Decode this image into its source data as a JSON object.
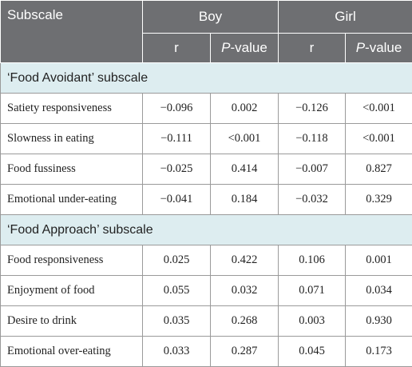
{
  "table": {
    "header": {
      "subscale": "Subscale",
      "groups": [
        "Boy",
        "Girl"
      ],
      "columns": [
        {
          "text": "r"
        },
        {
          "italic": "P",
          "text": "-value"
        },
        {
          "text": "r"
        },
        {
          "italic": "P",
          "text": "-value"
        }
      ]
    },
    "sections": [
      {
        "title": "‘Food Avoidant’ subscale",
        "rows": [
          [
            "Satiety responsiveness",
            "−0.096",
            "0.002",
            "−0.126",
            "<0.001"
          ],
          [
            "Slowness in eating",
            "−0.111",
            "<0.001",
            "−0.118",
            "<0.001"
          ],
          [
            "Food fussiness",
            "−0.025",
            "0.414",
            "−0.007",
            "0.827"
          ],
          [
            "Emotional under-eating",
            "−0.041",
            "0.184",
            "−0.032",
            "0.329"
          ]
        ]
      },
      {
        "title": "‘Food Approach’ subscale",
        "rows": [
          [
            "Food responsiveness",
            "0.025",
            "0.422",
            "0.106",
            "0.001"
          ],
          [
            "Enjoyment of food",
            "0.055",
            "0.032",
            "0.071",
            "0.034"
          ],
          [
            "Desire to drink",
            "0.035",
            "0.268",
            "0.003",
            "0.930"
          ],
          [
            "Emotional over-eating",
            "0.033",
            "0.287",
            "0.045",
            "0.173"
          ]
        ]
      }
    ]
  }
}
